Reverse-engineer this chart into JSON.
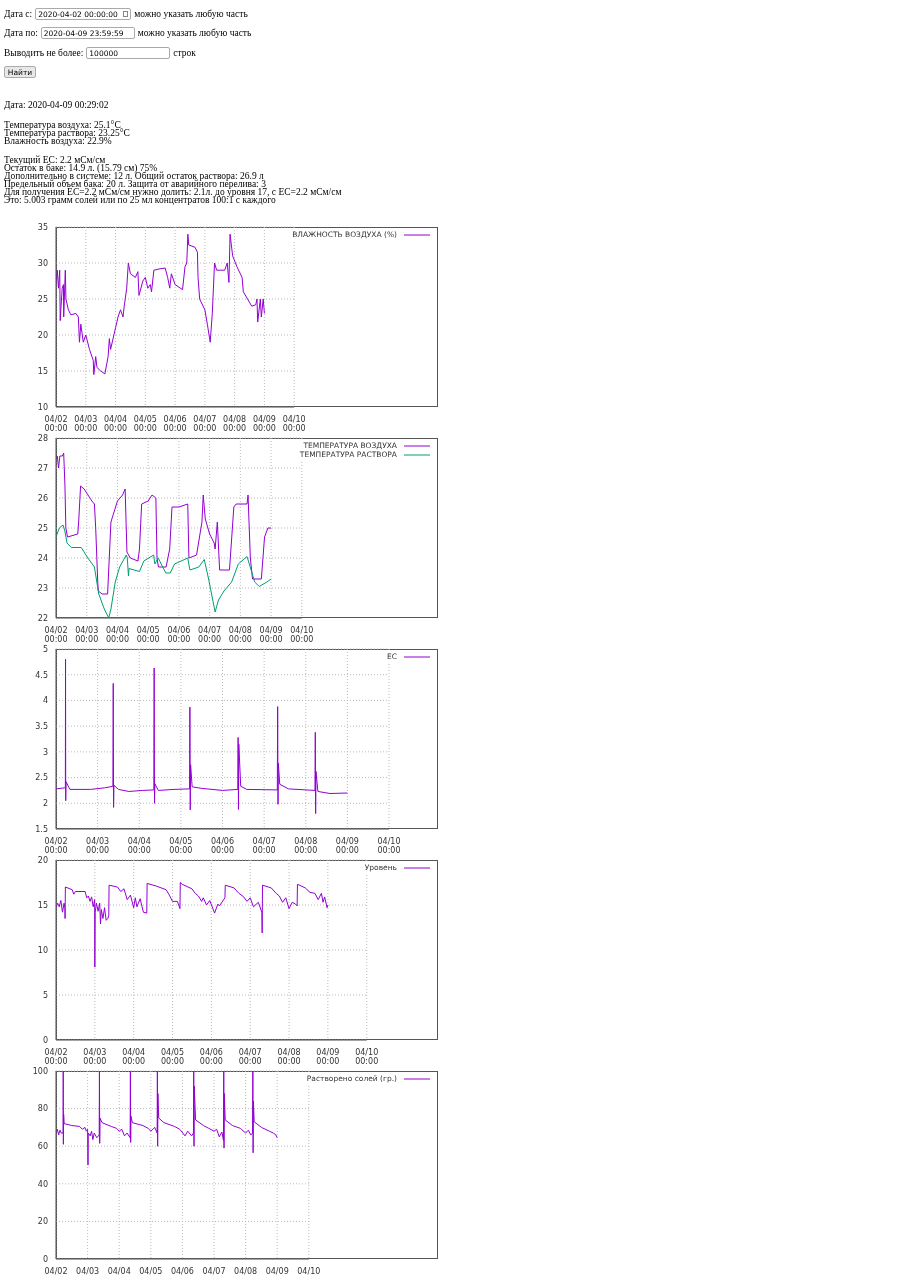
{
  "chart_data": [
    {
      "type": "other",
      "annotations": [
        "Дата с:",
        "2020-04-02 00:00:00",
        "можно указать любую часть",
        "Дата по:",
        "2020-04-09 23:59:59",
        "можно указать любую часть",
        "Выводить не более:",
        "100000",
        "строк",
        "Найти",
        "Дата: 2020-04-09 00:29:02",
        "Температура воздуха: 25.1°C\nТемпература раствора: 23.25°C\nВлажность воздуха: 22.9%",
        "Текущий EC: 2.2 мСм/см\nОстаток в баке: 14.9 л. (15.79 см) 75%\nДополнительно в системе: 12 л. Общий остаток раствора: 26.9 л\nПредельный объем бака: 20 л. Защита от аварийного перелива: 3\nДля получения EC=2.2 мСм/см нужно долить: 2.1л. до уровня 17, с EC=2.2 мСм/см\nЭто: 5.003 грамм солей или по 25 мл концентратов 100:1 с каждого"
      ]
    },
    {
      "type": "line",
      "grid": true,
      "legend": "top right",
      "xlim": [
        "2020-04-02T00:00",
        "2020-04-10T00:00"
      ],
      "ylim": [
        10,
        35
      ],
      "yticks": [
        10,
        15,
        20,
        25,
        30,
        35
      ],
      "xticks": [
        {
          "value": "2020-04-02T00:00",
          "label": "04/02\n00:00"
        },
        {
          "value": "2020-04-03T00:00",
          "label": "04/03\n00:00"
        },
        {
          "value": "2020-04-04T00:00",
          "label": "04/04\n00:00"
        },
        {
          "value": "2020-04-05T00:00",
          "label": "04/05\n00:00"
        },
        {
          "value": "2020-04-06T00:00",
          "label": "04/06\n00:00"
        },
        {
          "value": "2020-04-07T00:00",
          "label": "04/07\n00:00"
        },
        {
          "value": "2020-04-08T00:00",
          "label": "04/08\n00:00"
        },
        {
          "value": "2020-04-09T00:00",
          "label": "04/09\n00:00"
        },
        {
          "value": "2020-04-10T00:00",
          "label": "04/10\n00:00"
        }
      ],
      "series": [
        {
          "name": "ВЛАЖНОСТЬ ВОЗДУХА (%)",
          "color": "#9400d3",
          "x": [
            "2020-04-02T00:00",
            "2020-04-02T01:00",
            "2020-04-02T02:00",
            "2020-04-02T03:00",
            "2020-04-02T03:24",
            "2020-04-02T05:00",
            "2020-04-02T06:00",
            "2020-04-02T06:12",
            "2020-04-02T07:30",
            "2020-04-02T08:00",
            "2020-04-02T10:00",
            "2020-04-02T12:00",
            "2020-04-02T16:00",
            "2020-04-02T18:00",
            "2020-04-02T18:54",
            "2020-04-02T20:00",
            "2020-04-02T22:00",
            "2020-04-03T00:00",
            "2020-04-03T03:00",
            "2020-04-03T06:00",
            "2020-04-03T06:30",
            "2020-04-03T08:00",
            "2020-04-03T09:00",
            "2020-04-03T12:00",
            "2020-04-03T15:24",
            "2020-04-03T18:00",
            "2020-04-03T19:00",
            "2020-04-03T20:00",
            "2020-04-04T00:00",
            "2020-04-04T02:00",
            "2020-04-04T04:00",
            "2020-04-04T06:00",
            "2020-04-04T07:00",
            "2020-04-04T09:00",
            "2020-04-04T10:18",
            "2020-04-04T12:00",
            "2020-04-04T16:00",
            "2020-04-04T18:00",
            "2020-04-04T18:54",
            "2020-04-04T22:00",
            "2020-04-05T00:00",
            "2020-04-05T02:00",
            "2020-04-05T04:00",
            "2020-04-05T05:00",
            "2020-04-05T06:54",
            "2020-04-05T12:00",
            "2020-04-05T16:00",
            "2020-04-05T18:00",
            "2020-04-05T19:42",
            "2020-04-05T21:00",
            "2020-04-06T00:00",
            "2020-04-06T06:00",
            "2020-04-06T08:00",
            "2020-04-06T09:24",
            "2020-04-06T10:18",
            "2020-04-06T11:00",
            "2020-04-06T16:00",
            "2020-04-06T18:00",
            "2020-04-06T18:30",
            "2020-04-06T19:48",
            "2020-04-07T00:00",
            "2020-04-07T02:00",
            "2020-04-07T04:18",
            "2020-04-07T06:00",
            "2020-04-07T07:48",
            "2020-04-07T09:30",
            "2020-04-07T16:00",
            "2020-04-07T18:00",
            "2020-04-07T19:24",
            "2020-04-07T20:18",
            "2020-04-07T22:24",
            "2020-04-08T01:48",
            "2020-04-08T06:00",
            "2020-04-08T07:00",
            "2020-04-08T13:48",
            "2020-04-08T17:00",
            "2020-04-08T18:00",
            "2020-04-08T18:36",
            "2020-04-08T20:42",
            "2020-04-08T21:30",
            "2020-04-08T23:00",
            "2020-04-09T00:00"
          ],
          "values": [
            27,
            29,
            26.5,
            29,
            22,
            26.5,
            27,
            22.5,
            29,
            25,
            23.5,
            22.8,
            23,
            22.5,
            19,
            21.5,
            19,
            20,
            18,
            16.5,
            14.5,
            17,
            15.5,
            15,
            14.6,
            17,
            19.5,
            18,
            21,
            22.5,
            23.5,
            22.5,
            24,
            26.5,
            30,
            28.5,
            28,
            28.8,
            25.5,
            27.5,
            28,
            26.5,
            27,
            26,
            29,
            29.2,
            29.3,
            28,
            26.5,
            28.5,
            27,
            26.3,
            29.5,
            30,
            34,
            32.5,
            32.2,
            31.5,
            28,
            25,
            23.5,
            21.5,
            19,
            23,
            30,
            29,
            29,
            30,
            27.3,
            34,
            31,
            29.5,
            28,
            26,
            24,
            24.2,
            25,
            21.8,
            25,
            22.5,
            25,
            23
          ]
        }
      ]
    },
    {
      "type": "line",
      "grid": true,
      "legend": "top right",
      "xlim": [
        "2020-04-02T00:00",
        "2020-04-10T00:00"
      ],
      "ylim": [
        22,
        28
      ],
      "yticks": [
        22,
        23,
        24,
        25,
        26,
        27,
        28
      ],
      "xticks": [
        {
          "value": "2020-04-02T00:00",
          "label": "04/02\n00:00"
        },
        {
          "value": "2020-04-03T00:00",
          "label": "04/03\n00:00"
        },
        {
          "value": "2020-04-04T00:00",
          "label": "04/04\n00:00"
        },
        {
          "value": "2020-04-05T00:00",
          "label": "04/05\n00:00"
        },
        {
          "value": "2020-04-06T00:00",
          "label": "04/06\n00:00"
        },
        {
          "value": "2020-04-07T00:00",
          "label": "04/07\n00:00"
        },
        {
          "value": "2020-04-08T00:00",
          "label": "04/08\n00:00"
        },
        {
          "value": "2020-04-09T00:00",
          "label": "04/09\n00:00"
        },
        {
          "value": "2020-04-10T00:00",
          "label": "04/10\n00:00"
        }
      ],
      "series": [
        {
          "name": "ТЕМПЕРАТУРА ВОЗДУХА",
          "color": "#9400d3",
          "x": [
            "2020-04-02T00:00",
            "2020-04-02T01:00",
            "2020-04-02T02:00",
            "2020-04-02T03:00",
            "2020-04-02T05:00",
            "2020-04-02T06:00",
            "2020-04-02T07:00",
            "2020-04-02T07:42",
            "2020-04-02T09:00",
            "2020-04-02T17:00",
            "2020-04-02T17:42",
            "2020-04-02T19:12",
            "2020-04-02T22:00",
            "2020-04-03T04:00",
            "2020-04-03T06:00",
            "2020-04-03T07:00",
            "2020-04-03T08:36",
            "2020-04-03T09:00",
            "2020-04-03T12:00",
            "2020-04-03T16:18",
            "2020-04-03T18:54",
            "2020-04-04T00:00",
            "2020-04-04T04:00",
            "2020-04-04T06:00",
            "2020-04-04T07:24",
            "2020-04-04T10:00",
            "2020-04-04T16:00",
            "2020-04-04T17:12",
            "2020-04-04T18:54",
            "2020-04-05T00:00",
            "2020-04-05T03:00",
            "2020-04-05T06:00",
            "2020-04-05T06:54",
            "2020-04-05T08:00",
            "2020-04-05T14:00",
            "2020-04-05T16:48",
            "2020-04-05T18:36",
            "2020-04-06T00:00",
            "2020-04-06T06:54",
            "2020-04-06T07:48",
            "2020-04-06T13:48",
            "2020-04-06T18:00",
            "2020-04-06T19:00",
            "2020-04-06T20:36",
            "2020-04-07T00:00",
            "2020-04-07T03:30",
            "2020-04-07T04:18",
            "2020-04-07T06:00",
            "2020-04-07T07:48",
            "2020-04-07T15:30",
            "2020-04-07T18:54",
            "2020-04-07T20:42",
            "2020-04-08T05:12",
            "2020-04-08T06:00",
            "2020-04-08T07:48",
            "2020-04-08T09:30",
            "2020-04-08T16:24",
            "2020-04-08T18:54",
            "2020-04-08T21:30",
            "2020-04-09T00:00"
          ],
          "values": [
            27.3,
            27.4,
            27.0,
            27.4,
            27.4,
            27.5,
            26.4,
            25.0,
            24.7,
            24.8,
            25.2,
            26.4,
            26.3,
            25.9,
            25.8,
            25.0,
            23.2,
            22.9,
            22.8,
            22.8,
            25.2,
            25.9,
            26.1,
            26.3,
            24.2,
            24.0,
            23.9,
            24.3,
            25.8,
            25.9,
            26.1,
            26,
            24,
            23.7,
            23.7,
            24.3,
            25.7,
            25.7,
            25.8,
            24,
            24.1,
            25.2,
            26.1,
            25.3,
            24.8,
            24.5,
            24.3,
            25.2,
            23.6,
            23.6,
            25.7,
            25.8,
            25.8,
            26.1,
            24,
            23.3,
            23.3,
            24.7,
            25.0,
            25.0
          ]
        },
        {
          "name": "ТЕМПЕРАТУРА РАСТВОРА",
          "color": "#009e73",
          "x": [
            "2020-04-02T00:00",
            "2020-04-02T02:36",
            "2020-04-02T05:30",
            "2020-04-02T06:54",
            "2020-04-02T08:36",
            "2020-04-02T12:00",
            "2020-04-02T19:42",
            "2020-04-03T00:54",
            "2020-04-03T06:00",
            "2020-04-03T09:24",
            "2020-04-03T13:42",
            "2020-04-03T17:12",
            "2020-04-03T18:54",
            "2020-04-03T22:18",
            "2020-04-04T01:42",
            "2020-04-04T06:54",
            "2020-04-04T07:42",
            "2020-04-04T08:36",
            "2020-04-04T09:00",
            "2020-04-04T17:12",
            "2020-04-04T20:36",
            "2020-04-05T04:18",
            "2020-04-05T05:12",
            "2020-04-05T07:48",
            "2020-04-05T13:48",
            "2020-04-05T17:12",
            "2020-04-05T20:36",
            "2020-04-06T06:54",
            "2020-04-06T08:36",
            "2020-04-06T15:30",
            "2020-04-06T19:48",
            "2020-04-06T23:12",
            "2020-04-07T04:18",
            "2020-04-07T06:54",
            "2020-04-07T11:12",
            "2020-04-07T17:12",
            "2020-04-07T22:24",
            "2020-04-08T05:12",
            "2020-04-08T07:00",
            "2020-04-08T11:12",
            "2020-04-08T14:42",
            "2020-04-08T20:42",
            "2020-04-09T00:00"
          ],
          "values": [
            24.7,
            25.0,
            25.1,
            24.9,
            24.5,
            24.35,
            24.35,
            24.0,
            23.7,
            22.8,
            22.3,
            22.0,
            22.3,
            23.2,
            23.7,
            24.1,
            24.0,
            23.4,
            23.65,
            23.55,
            23.9,
            24.1,
            23.8,
            24.0,
            23.5,
            23.5,
            23.8,
            24.0,
            23.6,
            23.7,
            23.95,
            23.3,
            22.2,
            22.6,
            22.9,
            23.2,
            23.8,
            24.05,
            23.8,
            23.2,
            23.05,
            23.2,
            23.3
          ]
        }
      ]
    },
    {
      "type": "line",
      "grid": true,
      "legend": "top right",
      "xlim": [
        "2020-04-02T00:00",
        "2020-04-10T00:00"
      ],
      "ylim": [
        1.5,
        5
      ],
      "yticks": [
        1.5,
        2,
        2.5,
        3,
        3.5,
        4,
        4.5,
        5
      ],
      "xticks": [
        {
          "value": "2020-04-02T00:00",
          "label": "04/02\n00:00"
        },
        {
          "value": "2020-04-03T00:00",
          "label": "04/03\n00:00"
        },
        {
          "value": "2020-04-04T00:00",
          "label": "04/04\n00:00"
        },
        {
          "value": "2020-04-05T00:00",
          "label": "04/05\n00:00"
        },
        {
          "value": "2020-04-06T00:00",
          "label": "04/06\n00:00"
        },
        {
          "value": "2020-04-07T00:00",
          "label": "04/07\n00:00"
        },
        {
          "value": "2020-04-08T00:00",
          "label": "04/08\n00:00"
        },
        {
          "value": "2020-04-09T00:00",
          "label": "04/09\n00:00"
        },
        {
          "value": "2020-04-10T00:00",
          "label": "04/10\n00:00"
        }
      ],
      "series": [
        {
          "name": "EC",
          "color": "#9400d3",
          "x": [
            "2020-04-02T00:00",
            "2020-04-02T05:00",
            "2020-04-02T05:24",
            "2020-04-02T05:30",
            "2020-04-02T05:36",
            "2020-04-02T05:48",
            "2020-04-02T08:00",
            "2020-04-02T20:00",
            "2020-04-03T04:00",
            "2020-04-03T08:48",
            "2020-04-03T09:00",
            "2020-04-03T09:12",
            "2020-04-03T09:24",
            "2020-04-03T12:00",
            "2020-04-03T18:00",
            "2020-04-04T02:00",
            "2020-04-04T08:24",
            "2020-04-04T08:36",
            "2020-04-04T08:48",
            "2020-04-04T09:00",
            "2020-04-04T11:00",
            "2020-04-04T20:00",
            "2020-04-05T05:00",
            "2020-04-05T05:12",
            "2020-04-05T05:24",
            "2020-04-05T05:36",
            "2020-04-05T06:30",
            "2020-04-05T12:00",
            "2020-04-06T00:00",
            "2020-04-06T08:48",
            "2020-04-06T09:00",
            "2020-04-06T09:12",
            "2020-04-06T09:24",
            "2020-04-06T10:30",
            "2020-04-06T14:00",
            "2020-04-07T07:36",
            "2020-04-07T07:48",
            "2020-04-07T08:00",
            "2020-04-07T08:12",
            "2020-04-07T09:00",
            "2020-04-07T14:00",
            "2020-04-08T05:18",
            "2020-04-08T05:30",
            "2020-04-08T05:42",
            "2020-04-08T05:54",
            "2020-04-08T07:00",
            "2020-04-08T14:00",
            "2020-04-09T00:00"
          ],
          "values": [
            2.28,
            2.3,
            2.3,
            4.8,
            2.05,
            2.42,
            2.27,
            2.27,
            2.3,
            2.33,
            4.33,
            1.92,
            2.35,
            2.27,
            2.23,
            2.25,
            2.26,
            4.63,
            2.0,
            2.38,
            2.25,
            2.27,
            2.28,
            3.87,
            1.87,
            2.75,
            2.32,
            2.29,
            2.25,
            2.27,
            3.28,
            1.88,
            3.15,
            2.33,
            2.27,
            2.26,
            3.88,
            1.98,
            2.78,
            2.37,
            2.28,
            2.25,
            3.38,
            1.8,
            2.62,
            2.23,
            2.19,
            2.2
          ]
        }
      ]
    },
    {
      "type": "line",
      "grid": true,
      "legend": "top right",
      "xlim": [
        "2020-04-02T00:00",
        "2020-04-10T00:00"
      ],
      "ylim": [
        0,
        20
      ],
      "yticks": [
        0,
        5,
        10,
        15,
        20
      ],
      "xticks": [
        {
          "value": "2020-04-02T00:00",
          "label": "04/02\n00:00"
        },
        {
          "value": "2020-04-03T00:00",
          "label": "04/03\n00:00"
        },
        {
          "value": "2020-04-04T00:00",
          "label": "04/04\n00:00"
        },
        {
          "value": "2020-04-05T00:00",
          "label": "04/05\n00:00"
        },
        {
          "value": "2020-04-06T00:00",
          "label": "04/06\n00:00"
        },
        {
          "value": "2020-04-07T00:00",
          "label": "04/07\n00:00"
        },
        {
          "value": "2020-04-08T00:00",
          "label": "04/08\n00:00"
        },
        {
          "value": "2020-04-09T00:00",
          "label": "04/09\n00:00"
        },
        {
          "value": "2020-04-10T00:00",
          "label": "04/10\n00:00"
        }
      ],
      "series": [
        {
          "name": "Уровень",
          "color": "#9400d3",
          "x": [
            "2020-04-02T00:00",
            "2020-04-02T01:00",
            "2020-04-02T02:00",
            "2020-04-02T03:00",
            "2020-04-02T04:00",
            "2020-04-02T05:00",
            "2020-04-02T05:30",
            "2020-04-02T05:36",
            "2020-04-02T05:48",
            "2020-04-02T10:00",
            "2020-04-02T11:00",
            "2020-04-02T12:00",
            "2020-04-02T18:00",
            "2020-04-02T19:00",
            "2020-04-02T20:00",
            "2020-04-02T21:00",
            "2020-04-02T22:00",
            "2020-04-02T23:00",
            "2020-04-02T23:54",
            "2020-04-03T00:00",
            "2020-04-03T00:12",
            "2020-04-03T01:00",
            "2020-04-03T02:00",
            "2020-04-03T03:00",
            "2020-04-03T03:30",
            "2020-04-03T04:00",
            "2020-04-03T05:00",
            "2020-04-03T06:00",
            "2020-04-03T07:00",
            "2020-04-03T08:00",
            "2020-04-03T08:36",
            "2020-04-03T08:48",
            "2020-04-03T14:00",
            "2020-04-03T16:00",
            "2020-04-03T18:00",
            "2020-04-03T20:00",
            "2020-04-03T22:00",
            "2020-04-04T00:00",
            "2020-04-04T01:00",
            "2020-04-04T02:00",
            "2020-04-04T04:00",
            "2020-04-04T06:00",
            "2020-04-04T08:06",
            "2020-04-04T08:18",
            "2020-04-04T14:00",
            "2020-04-04T20:00",
            "2020-04-04T22:00",
            "2020-04-05T00:00",
            "2020-04-05T03:00",
            "2020-04-05T04:36",
            "2020-04-05T04:48",
            "2020-04-05T06:00",
            "2020-04-05T12:00",
            "2020-04-05T14:00",
            "2020-04-05T16:00",
            "2020-04-05T18:00",
            "2020-04-05T19:00",
            "2020-04-05T21:00",
            "2020-04-05T23:00",
            "2020-04-06T02:00",
            "2020-04-06T04:00",
            "2020-04-06T05:00",
            "2020-04-06T08:24",
            "2020-04-06T08:36",
            "2020-04-06T14:00",
            "2020-04-06T17:00",
            "2020-04-06T20:00",
            "2020-04-06T22:00",
            "2020-04-07T00:00",
            "2020-04-07T02:00",
            "2020-04-07T05:00",
            "2020-04-07T07:12",
            "2020-04-07T07:24",
            "2020-04-07T07:36",
            "2020-04-07T13:00",
            "2020-04-07T16:00",
            "2020-04-07T18:00",
            "2020-04-07T20:00",
            "2020-04-07T22:00",
            "2020-04-08T00:00",
            "2020-04-08T02:00",
            "2020-04-08T04:00",
            "2020-04-08T05:00",
            "2020-04-08T05:12",
            "2020-04-08T10:00",
            "2020-04-08T13:00",
            "2020-04-08T16:00",
            "2020-04-08T18:00",
            "2020-04-08T20:00",
            "2020-04-08T21:00",
            "2020-04-08T22:00",
            "2020-04-08T23:30",
            "2020-04-09T00:00"
          ],
          "values": [
            14.7,
            15.2,
            14.8,
            15.5,
            14.2,
            15.2,
            14.7,
            13.5,
            17.0,
            16.7,
            16.2,
            16.5,
            16.5,
            15.8,
            16,
            15.4,
            15.9,
            14.8,
            15.6,
            8.1,
            14.2,
            15.2,
            14.3,
            15.2,
            12.9,
            14.5,
            13.5,
            14.7,
            13.3,
            13.5,
            13.8,
            17.2,
            17.0,
            16.5,
            16.8,
            15.6,
            16.1,
            14.7,
            15.8,
            14.8,
            15.7,
            14.2,
            14.1,
            17.4,
            17.1,
            16.7,
            16.1,
            15.4,
            15.4,
            14.6,
            17.5,
            17.3,
            16.8,
            16.3,
            16.0,
            15.4,
            15.8,
            15.0,
            15.5,
            14.1,
            15.1,
            14.9,
            15.8,
            17.2,
            16.9,
            16.3,
            15.9,
            15.4,
            15.8,
            14.8,
            15.3,
            14.2,
            11.9,
            17.2,
            16.9,
            16.3,
            16.0,
            15.3,
            15.8,
            14.6,
            15.3,
            15.1,
            14.9,
            17.3,
            16.9,
            16.4,
            16.3,
            15.6,
            16.3,
            15.3,
            15.9,
            14.7,
            15.0
          ]
        }
      ]
    },
    {
      "type": "line",
      "grid": true,
      "legend": "top right",
      "xlim": [
        "2020-04-02T00:00",
        "2020-04-10T00:00"
      ],
      "ylim": [
        0,
        100
      ],
      "yticks": [
        0,
        20,
        40,
        60,
        80,
        100
      ],
      "xticks": [
        {
          "value": "2020-04-02T00:00",
          "label": "04/02"
        },
        {
          "value": "2020-04-03T00:00",
          "label": "04/03"
        },
        {
          "value": "2020-04-04T00:00",
          "label": "04/04"
        },
        {
          "value": "2020-04-05T00:00",
          "label": "04/05"
        },
        {
          "value": "2020-04-06T00:00",
          "label": "04/06"
        },
        {
          "value": "2020-04-07T00:00",
          "label": "04/07"
        },
        {
          "value": "2020-04-08T00:00",
          "label": "04/08"
        },
        {
          "value": "2020-04-09T00:00",
          "label": "04/09"
        },
        {
          "value": "2020-04-10T00:00",
          "label": "04/10"
        }
      ],
      "series": [
        {
          "name": "Растворено солей (гр.)",
          "color": "#9400d3",
          "x": [
            "2020-04-02T00:00",
            "2020-04-02T01:00",
            "2020-04-02T02:00",
            "2020-04-02T03:00",
            "2020-04-02T04:00",
            "2020-04-02T05:24",
            "2020-04-02T05:30",
            "2020-04-02T05:36",
            "2020-04-02T05:48",
            "2020-04-02T06:12",
            "2020-04-02T12:00",
            "2020-04-02T18:00",
            "2020-04-02T20:00",
            "2020-04-02T22:00",
            "2020-04-02T23:00",
            "2020-04-03T00:00",
            "2020-04-03T00:18",
            "2020-04-03T00:30",
            "2020-04-03T02:00",
            "2020-04-03T03:00",
            "2020-04-03T04:00",
            "2020-04-03T05:00",
            "2020-04-03T07:00",
            "2020-04-03T08:48",
            "2020-04-03T09:00",
            "2020-04-03T09:12",
            "2020-04-03T09:24",
            "2020-04-03T11:00",
            "2020-04-03T18:00",
            "2020-04-03T22:00",
            "2020-04-04T00:00",
            "2020-04-04T02:00",
            "2020-04-04T04:00",
            "2020-04-04T06:00",
            "2020-04-04T08:18",
            "2020-04-04T08:30",
            "2020-04-04T08:42",
            "2020-04-04T08:54",
            "2020-04-04T10:00",
            "2020-04-04T18:00",
            "2020-04-04T22:00",
            "2020-04-05T00:00",
            "2020-04-05T03:00",
            "2020-04-05T04:48",
            "2020-04-05T05:00",
            "2020-04-05T05:12",
            "2020-04-05T05:24",
            "2020-04-05T06:00",
            "2020-04-05T10:00",
            "2020-04-05T18:00",
            "2020-04-05T22:00",
            "2020-04-06T02:00",
            "2020-04-06T04:00",
            "2020-04-06T07:00",
            "2020-04-06T08:24",
            "2020-04-06T08:36",
            "2020-04-06T08:48",
            "2020-04-06T09:00",
            "2020-04-06T10:00",
            "2020-04-06T16:00",
            "2020-04-06T20:00",
            "2020-04-07T00:00",
            "2020-04-07T02:00",
            "2020-04-07T04:00",
            "2020-04-07T06:00",
            "2020-04-07T07:12",
            "2020-04-07T07:24",
            "2020-04-07T07:36",
            "2020-04-07T07:48",
            "2020-04-07T08:30",
            "2020-04-07T14:00",
            "2020-04-07T20:00",
            "2020-04-08T00:00",
            "2020-04-08T02:00",
            "2020-04-08T04:00",
            "2020-04-08T05:18",
            "2020-04-08T05:30",
            "2020-04-08T05:42",
            "2020-04-08T05:54",
            "2020-04-08T06:30",
            "2020-04-08T12:00",
            "2020-04-08T18:00",
            "2020-04-08T21:00",
            "2020-04-08T23:00",
            "2020-04-09T00:00"
          ],
          "values": [
            67,
            69,
            66,
            68.5,
            67,
            67,
            100,
            61,
            77,
            72,
            71,
            70.5,
            69,
            70,
            68,
            69,
            50,
            67,
            65.5,
            68,
            63.5,
            67,
            64.5,
            66,
            100,
            61.5,
            75,
            72.5,
            70.5,
            69.5,
            68,
            69,
            65.5,
            67,
            64.5,
            100,
            62,
            76,
            72.5,
            71,
            69.5,
            68,
            70,
            67,
            100,
            60,
            88,
            75,
            72.5,
            70.5,
            69,
            65.5,
            68,
            65.5,
            67,
            100,
            60,
            92,
            74,
            71,
            69.5,
            68,
            69,
            65,
            67.5,
            63,
            100,
            59,
            88,
            74,
            71,
            69.5,
            67,
            68.5,
            66,
            67,
            100,
            56.5,
            84,
            73,
            70,
            68,
            67,
            66,
            64.5
          ]
        }
      ]
    }
  ]
}
